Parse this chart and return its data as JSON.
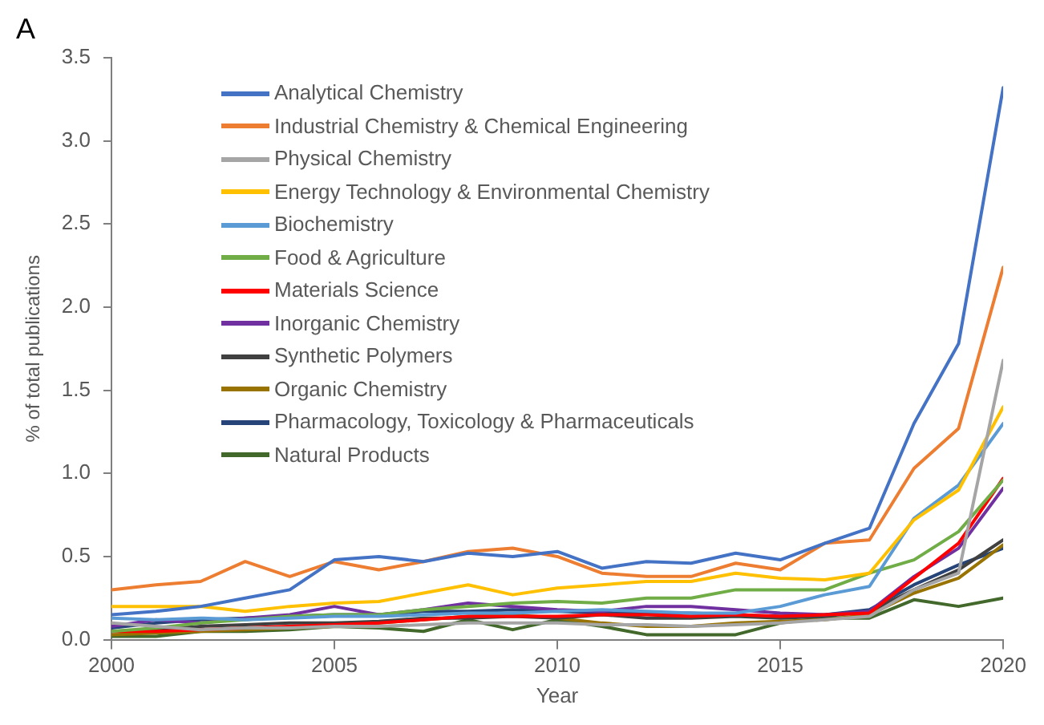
{
  "chart_data": {
    "type": "line",
    "xlabel": "Year",
    "ylabel": "% of total publications",
    "annotations": [
      "A"
    ],
    "x": [
      2000,
      2001,
      2002,
      2003,
      2004,
      2005,
      2006,
      2007,
      2008,
      2009,
      2010,
      2011,
      2012,
      2013,
      2014,
      2015,
      2016,
      2017,
      2018,
      2019,
      2020
    ],
    "xlim": [
      2000,
      2020
    ],
    "xticks": [
      2000,
      2005,
      2010,
      2015,
      2020
    ],
    "ylim": [
      0,
      3.5
    ],
    "yticks": [
      {
        "value": 0,
        "label": "0.0"
      },
      {
        "value": 0.5,
        "label": "0.5"
      },
      {
        "value": 1,
        "label": "1.0"
      },
      {
        "value": 1.5,
        "label": "1.5"
      },
      {
        "value": 2,
        "label": "2.0"
      },
      {
        "value": 2.5,
        "label": "2.5"
      },
      {
        "value": 3,
        "label": "3.0"
      },
      {
        "value": 3.5,
        "label": "3.5"
      }
    ],
    "grid": false,
    "legend": "top left",
    "marker": "none",
    "line_style": "solid",
    "series": [
      {
        "name": "Analytical Chemistry",
        "color": "#4472c4",
        "values": [
          0.15,
          0.17,
          0.2,
          0.25,
          0.3,
          0.48,
          0.5,
          0.47,
          0.52,
          0.5,
          0.53,
          0.43,
          0.47,
          0.46,
          0.52,
          0.48,
          0.58,
          0.67,
          1.3,
          1.78,
          3.32
        ]
      },
      {
        "name": "Industrial Chemistry & Chemical Engineering",
        "color": "#ed7d31",
        "values": [
          0.3,
          0.33,
          0.35,
          0.47,
          0.38,
          0.47,
          0.42,
          0.47,
          0.53,
          0.55,
          0.5,
          0.4,
          0.38,
          0.38,
          0.46,
          0.42,
          0.58,
          0.6,
          1.03,
          1.27,
          2.24
        ]
      },
      {
        "name": "Physical Chemistry",
        "color": "#a5a5a5",
        "values": [
          0.1,
          0.08,
          0.06,
          0.07,
          0.07,
          0.08,
          0.08,
          0.09,
          0.1,
          0.1,
          0.1,
          0.09,
          0.09,
          0.08,
          0.09,
          0.1,
          0.12,
          0.14,
          0.3,
          0.4,
          1.68
        ]
      },
      {
        "name": "Energy Technology & Environmental Chemistry",
        "color": "#ffc000",
        "values": [
          0.2,
          0.2,
          0.2,
          0.17,
          0.2,
          0.22,
          0.23,
          0.28,
          0.33,
          0.27,
          0.31,
          0.33,
          0.35,
          0.35,
          0.4,
          0.37,
          0.36,
          0.4,
          0.72,
          0.9,
          1.4
        ]
      },
      {
        "name": "Biochemistry",
        "color": "#5b9bd5",
        "values": [
          0.13,
          0.12,
          0.13,
          0.12,
          0.13,
          0.14,
          0.14,
          0.15,
          0.16,
          0.16,
          0.17,
          0.18,
          0.17,
          0.16,
          0.16,
          0.2,
          0.27,
          0.32,
          0.73,
          0.93,
          1.3
        ]
      },
      {
        "name": "Food & Agriculture",
        "color": "#70ad47",
        "values": [
          0.05,
          0.07,
          0.1,
          0.12,
          0.14,
          0.15,
          0.15,
          0.18,
          0.2,
          0.22,
          0.23,
          0.22,
          0.25,
          0.25,
          0.3,
          0.3,
          0.3,
          0.4,
          0.48,
          0.65,
          0.96
        ]
      },
      {
        "name": "Materials Science",
        "color": "#ff0000",
        "values": [
          0.05,
          0.05,
          0.06,
          0.07,
          0.08,
          0.09,
          0.1,
          0.12,
          0.14,
          0.14,
          0.14,
          0.15,
          0.15,
          0.14,
          0.15,
          0.14,
          0.15,
          0.16,
          0.37,
          0.58,
          0.97
        ]
      },
      {
        "name": "Inorganic Chemistry",
        "color": "#7030a0",
        "values": [
          0.08,
          0.12,
          0.1,
          0.13,
          0.15,
          0.2,
          0.15,
          0.18,
          0.22,
          0.2,
          0.18,
          0.17,
          0.2,
          0.2,
          0.18,
          0.16,
          0.15,
          0.17,
          0.38,
          0.55,
          0.91
        ]
      },
      {
        "name": "Synthetic Polymers",
        "color": "#404040",
        "values": [
          0.05,
          0.06,
          0.08,
          0.09,
          0.1,
          0.1,
          0.11,
          0.13,
          0.13,
          0.14,
          0.13,
          0.15,
          0.13,
          0.13,
          0.14,
          0.13,
          0.14,
          0.17,
          0.3,
          0.42,
          0.6
        ]
      },
      {
        "name": "Organic Chemistry",
        "color": "#997300",
        "values": [
          0.03,
          0.04,
          0.05,
          0.06,
          0.07,
          0.08,
          0.1,
          0.12,
          0.14,
          0.15,
          0.13,
          0.1,
          0.08,
          0.08,
          0.1,
          0.11,
          0.12,
          0.15,
          0.28,
          0.37,
          0.57
        ]
      },
      {
        "name": "Pharmacology, Toxicology & Pharmaceuticals",
        "color": "#264478",
        "values": [
          0.07,
          0.1,
          0.12,
          0.13,
          0.14,
          0.15,
          0.15,
          0.17,
          0.17,
          0.18,
          0.17,
          0.16,
          0.16,
          0.16,
          0.15,
          0.14,
          0.15,
          0.18,
          0.33,
          0.45,
          0.55
        ]
      },
      {
        "name": "Natural Products",
        "color": "#43682b",
        "values": [
          0.02,
          0.02,
          0.05,
          0.05,
          0.06,
          0.08,
          0.07,
          0.05,
          0.12,
          0.06,
          0.12,
          0.08,
          0.03,
          0.03,
          0.03,
          0.1,
          0.13,
          0.13,
          0.24,
          0.2,
          0.25
        ]
      }
    ]
  }
}
